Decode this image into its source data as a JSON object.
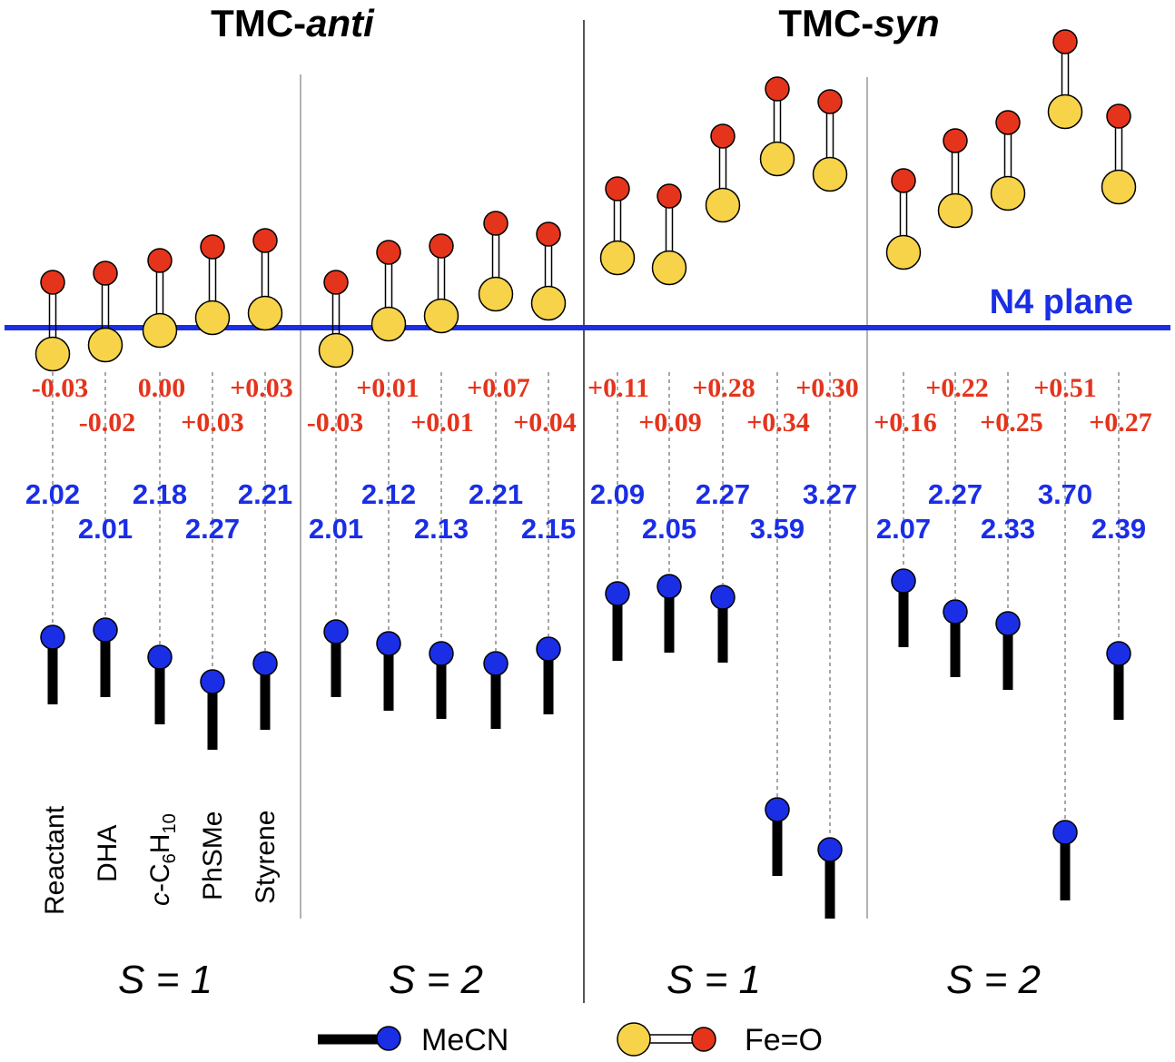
{
  "panel_titles": [
    {
      "prefix": "TMC-",
      "suffix": "anti"
    },
    {
      "prefix": "TMC-",
      "suffix": "syn"
    }
  ],
  "n4_plane_label": "N4 plane",
  "spin_labels": [
    "S = 1",
    "S = 2",
    "S = 1",
    "S = 2"
  ],
  "substrate_labels": [
    "Reactant",
    "DHA",
    "c-C6H10",
    "PhSMe",
    "Styrene"
  ],
  "substrate_label_parts": {
    "c-C6H10": {
      "italic": "c",
      "text1": "-C",
      "sub1": "6",
      "text2": "H",
      "sub2": "10"
    }
  },
  "legend": {
    "mecn": "MeCN",
    "feo": "Fe=O"
  },
  "colors": {
    "blue": "#1a2ee6",
    "red": "#e5341c",
    "fe": "#f7d34a",
    "o": "#e5341c",
    "mecn": "#1a2ee6"
  },
  "chart_data": {
    "type": "diagram",
    "description_units": "Fe displacement from N4 plane (Å, red) and Fe–N(MeCN) distance (Å, blue)",
    "groups": [
      {
        "panel": "TMC-anti",
        "spin": "S = 1",
        "fe_displacement": [
          "-0.03",
          "-0.02",
          "0.00",
          "+0.03",
          "+0.03"
        ],
        "fe_n_mecn": [
          "2.02",
          "2.01",
          "2.18",
          "2.27",
          "2.21"
        ]
      },
      {
        "panel": "TMC-anti",
        "spin": "S = 2",
        "fe_displacement": [
          "-0.03",
          "+0.01",
          "+0.01",
          "+0.07",
          "+0.04"
        ],
        "fe_n_mecn": [
          "2.01",
          "2.12",
          "2.13",
          "2.21",
          "2.15"
        ]
      },
      {
        "panel": "TMC-syn",
        "spin": "S = 1",
        "fe_displacement": [
          "+0.11",
          "+0.09",
          "+0.28",
          "+0.34",
          "+0.30"
        ],
        "fe_n_mecn": [
          "2.09",
          "2.05",
          "2.27",
          "3.59",
          "3.27"
        ]
      },
      {
        "panel": "TMC-syn",
        "spin": "S = 2",
        "fe_displacement": [
          "+0.16",
          "+0.22",
          "+0.25",
          "+0.51",
          "+0.27"
        ],
        "fe_n_mecn": [
          "2.07",
          "2.27",
          "2.33",
          "3.70",
          "2.39"
        ]
      }
    ]
  }
}
